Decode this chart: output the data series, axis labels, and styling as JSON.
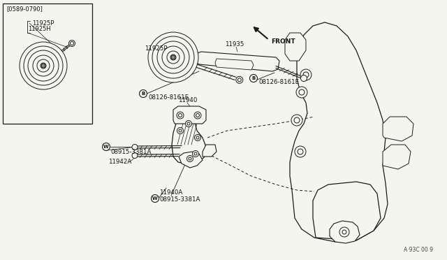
{
  "bg_color": "#f5f5f0",
  "line_color": "#1a1a1a",
  "text_color": "#111111",
  "fig_note": "A·93C 00 9",
  "labels": {
    "top_bolt_label": "08915-3381A",
    "top_bracket_label": "11940A",
    "top_left_label1": "11942A",
    "top_left_label2": "08915-3381A",
    "main_bracket": "11940",
    "bottom_bolt_left": "08126-8161E",
    "bottom_bolt_right": "08126-8161E",
    "bottom_bracket": "11935",
    "pulley_main": "11925P",
    "inset_pulley": "11925P",
    "inset_bolt": "11925H",
    "date_range": "[0589-0790]",
    "front_label": "FRONT"
  }
}
